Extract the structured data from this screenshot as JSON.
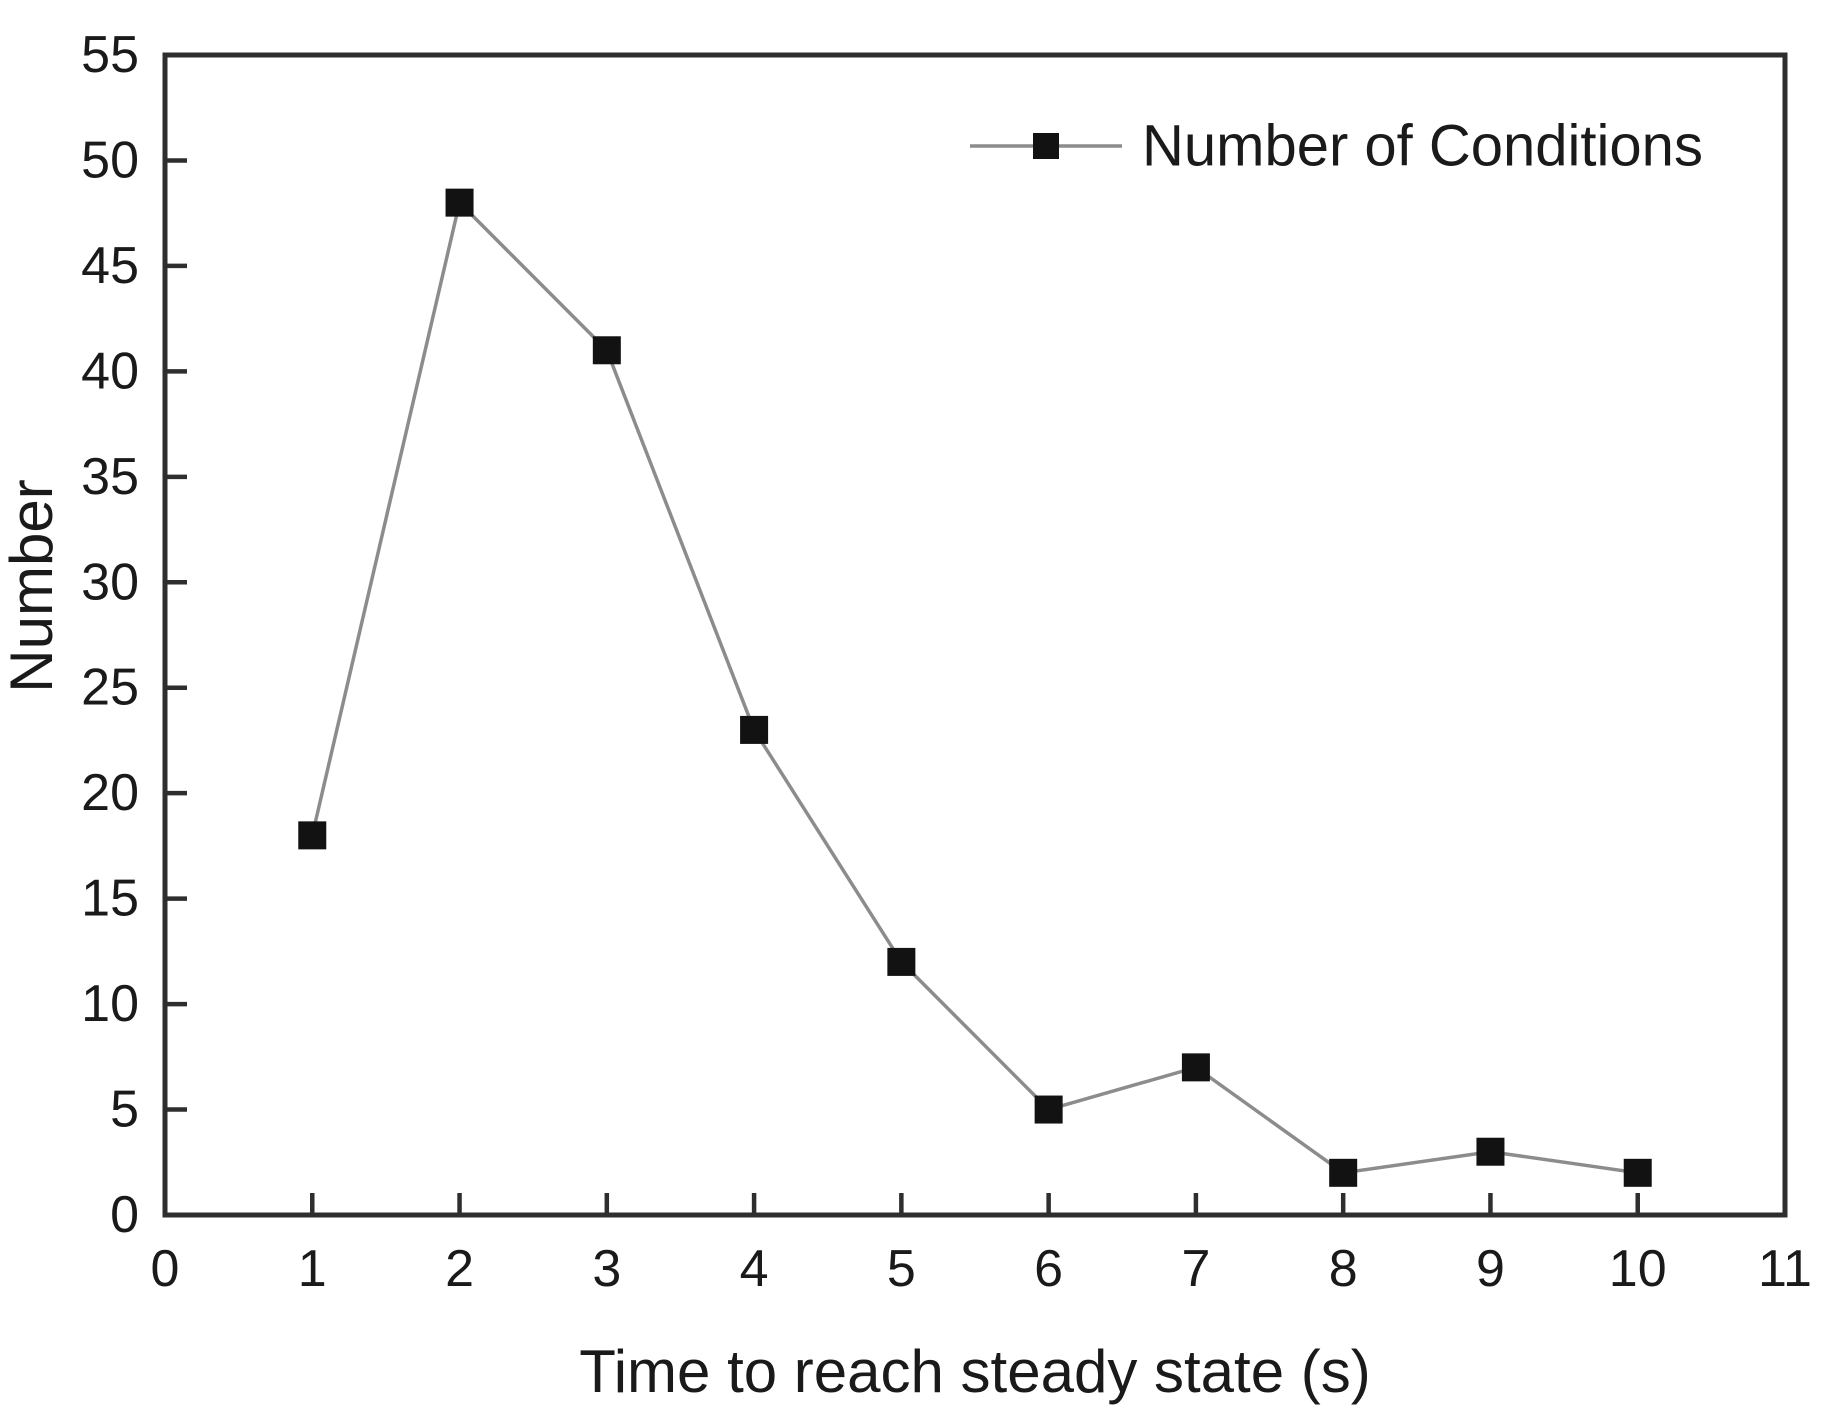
{
  "figure": {
    "background": "#ffffff"
  },
  "chart_data": {
    "type": "line",
    "title": "",
    "xlabel": "Time to reach steady state (s)",
    "ylabel": "Number",
    "series": [
      {
        "name": "Number of Conditions",
        "x": [
          1,
          2,
          3,
          4,
          5,
          6,
          7,
          8,
          9,
          10
        ],
        "values": [
          18,
          48,
          41,
          23,
          12,
          5,
          7,
          2,
          3,
          2
        ],
        "marker": "square"
      }
    ],
    "xlim": [
      0,
      11
    ],
    "ylim": [
      0,
      55
    ],
    "x_ticks": [
      0,
      1,
      2,
      3,
      4,
      5,
      6,
      7,
      8,
      9,
      10,
      11
    ],
    "y_ticks": [
      0,
      5,
      10,
      15,
      20,
      25,
      30,
      35,
      40,
      45,
      50,
      55
    ],
    "grid": false,
    "legend": {
      "position": "top-right-inside",
      "entries": [
        "Number of Conditions"
      ]
    },
    "colors": {
      "line": "#8c8c8c",
      "marker": "#121212",
      "axis": "#2e2e2e",
      "text": "#1a1a1a",
      "background": "#ffffff"
    }
  }
}
